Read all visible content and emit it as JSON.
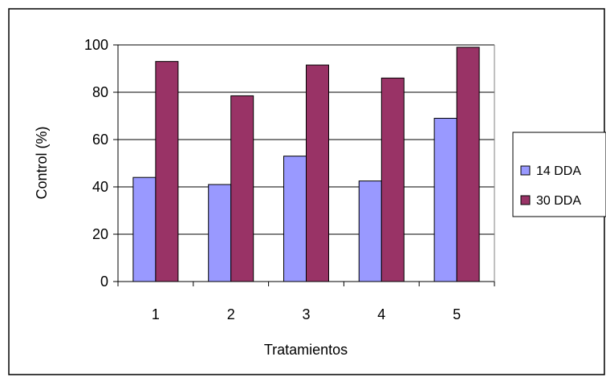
{
  "chart_data": {
    "type": "bar",
    "title": "",
    "xlabel": "Tratamientos",
    "ylabel": "Control (%)",
    "categories": [
      "1",
      "2",
      "3",
      "4",
      "5"
    ],
    "ylim": [
      0,
      100
    ],
    "yticks": [
      0,
      20,
      40,
      60,
      80,
      100
    ],
    "grid": true,
    "legend_position": "right",
    "series": [
      {
        "name": "14 DDA",
        "color": "#9999ff",
        "values": [
          44,
          41,
          53,
          42.5,
          69
        ]
      },
      {
        "name": "30 DDA",
        "color": "#993366",
        "values": [
          93,
          78.5,
          91.5,
          86,
          99
        ]
      }
    ]
  }
}
